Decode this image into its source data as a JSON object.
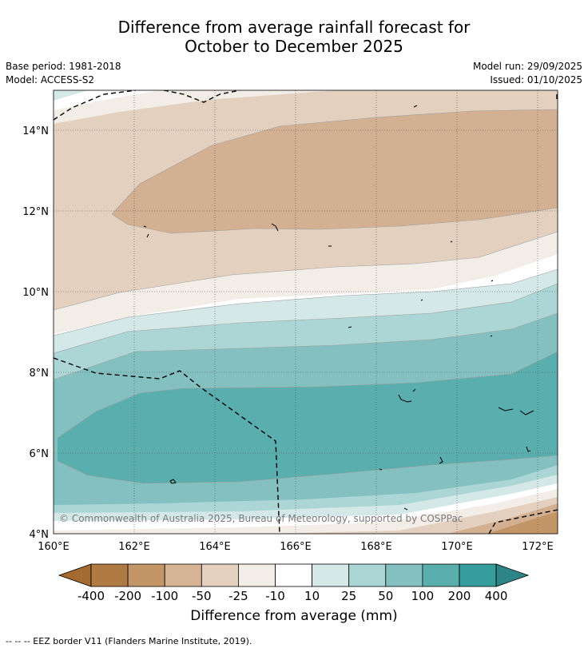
{
  "title": {
    "line1": "Difference from average rainfall forecast for",
    "line2": "October to December 2025"
  },
  "meta": {
    "base_period": "Base period: 1981-2018",
    "model": "Model: ACCESS-S2",
    "model_run": "Model run: 29/09/2025",
    "issued": "Issued: 01/10/2025"
  },
  "map": {
    "copyright": "© Commonwealth of Australia 2025, Bureau of Meteorology, supported by COSPPac",
    "lat_labels": [
      "14°N",
      "12°N",
      "10°N",
      "8°N",
      "6°N",
      "4°N"
    ],
    "lon_labels": [
      "160°E",
      "162°E",
      "164°E",
      "166°E",
      "168°E",
      "170°E",
      "172°E"
    ]
  },
  "legend": {
    "title": "Difference from average (mm)",
    "ticks": [
      "-400",
      "-200",
      "-100",
      "-50",
      "-25",
      "-10",
      "10",
      "25",
      "50",
      "100",
      "200",
      "400"
    ],
    "colors": [
      "#a46a30",
      "#b07a44",
      "#c39667",
      "#d6b394",
      "#e3d0bf",
      "#f3ede7",
      "#ffffff",
      "#d4e8e8",
      "#acd5d5",
      "#84c0c0",
      "#5aaeae",
      "#369c9c",
      "#2e8585"
    ]
  },
  "footer": "--  --  -- EEZ border V11 (Flanders Marine Institute, 2019)."
}
